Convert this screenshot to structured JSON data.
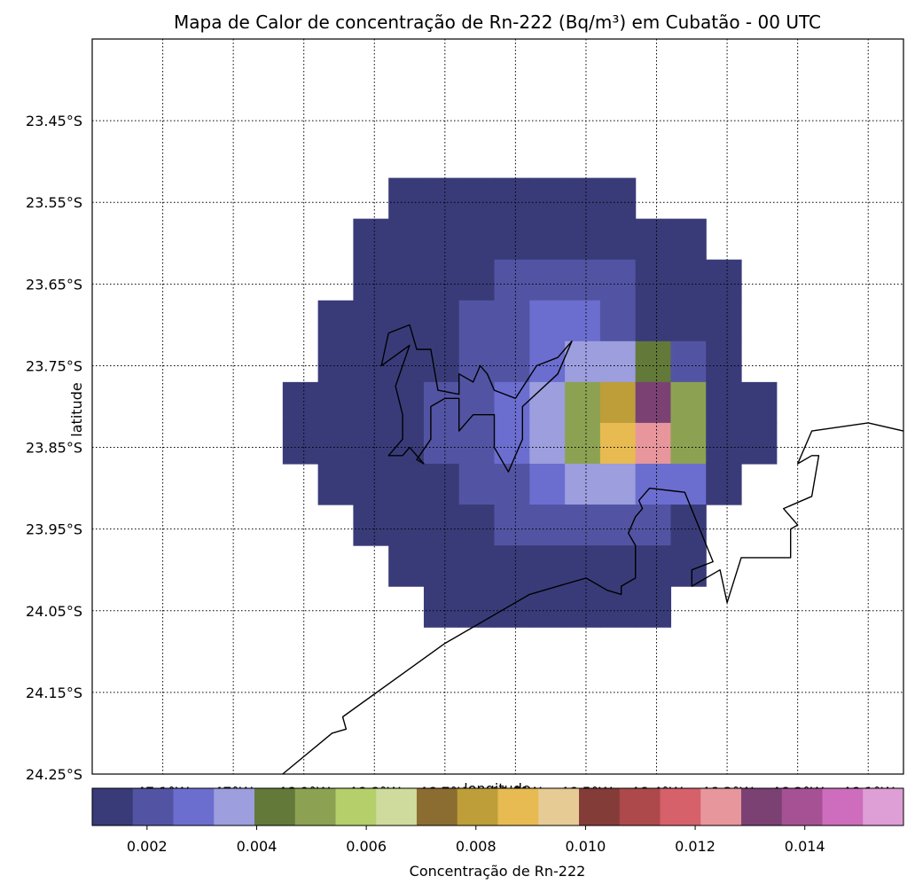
{
  "title": "Mapa de Calor de concentração de Rn-222 (Bq/m³) em Cubatão - 00 UTC",
  "map": {
    "xlabel": "longitude",
    "ylabel": "latitude",
    "lon_range": [
      -47.2,
      -46.05
    ],
    "lat_range": [
      -24.25,
      -23.35
    ],
    "lon_ticks": [
      -47.1,
      -47.0,
      -46.9,
      -46.8,
      -46.7,
      -46.6,
      -46.5,
      -46.4,
      -46.3,
      -46.2,
      -46.1
    ],
    "lon_tick_labels": [
      "47.1°W",
      "47°W",
      "46.9°W",
      "46.8°W",
      "46.7°W",
      "46.6°W",
      "46.5°W",
      "46.4°W",
      "46.3°W",
      "46.2°W",
      "46.1°W"
    ],
    "lat_ticks": [
      -23.45,
      -23.55,
      -23.65,
      -23.75,
      -23.85,
      -23.95,
      -24.05,
      -24.15,
      -24.25
    ],
    "lat_tick_labels": [
      "23.45°S",
      "23.55°S",
      "23.65°S",
      "23.75°S",
      "23.85°S",
      "23.95°S",
      "24.05°S",
      "24.15°S",
      "24.25°S"
    ],
    "gridlines": "dotted",
    "grid_cells": {
      "lon_edges": [
        -46.93,
        -46.88,
        -46.83,
        -46.78,
        -46.73,
        -46.68,
        -46.63,
        -46.58,
        -46.53,
        -46.48,
        -46.43,
        -46.38,
        -46.33,
        -46.28,
        -46.23
      ],
      "lat_edges": [
        -23.52,
        -23.57,
        -23.62,
        -23.67,
        -23.72,
        -23.77,
        -23.82,
        -23.87,
        -23.92,
        -23.97,
        -24.02,
        -24.07
      ],
      "rows": [
        [
          0,
          0,
          0,
          1,
          1,
          1,
          1,
          1,
          1,
          1,
          0,
          0,
          0,
          0
        ],
        [
          0,
          0,
          1,
          1,
          1,
          1,
          1,
          1,
          1,
          1,
          1,
          1,
          0,
          0
        ],
        [
          0,
          0,
          1,
          1,
          1,
          1,
          2,
          2,
          2,
          2,
          1,
          1,
          1,
          0
        ],
        [
          0,
          1,
          1,
          1,
          1,
          2,
          2,
          3,
          3,
          2,
          1,
          1,
          1,
          0
        ],
        [
          0,
          1,
          1,
          1,
          1,
          2,
          2,
          3,
          4,
          4,
          5,
          2,
          1,
          0
        ],
        [
          1,
          1,
          1,
          1,
          2,
          2,
          3,
          4,
          6,
          10,
          17,
          6,
          1,
          1
        ],
        [
          1,
          1,
          1,
          1,
          2,
          2,
          3,
          4,
          6,
          11,
          16,
          6,
          1,
          1
        ],
        [
          0,
          1,
          1,
          1,
          1,
          2,
          2,
          3,
          4,
          4,
          3,
          3,
          1,
          0
        ],
        [
          0,
          0,
          1,
          1,
          1,
          1,
          2,
          2,
          2,
          2,
          2,
          1,
          0,
          0
        ],
        [
          0,
          0,
          0,
          1,
          1,
          1,
          1,
          1,
          1,
          1,
          1,
          1,
          0,
          0
        ],
        [
          0,
          0,
          0,
          0,
          1,
          1,
          1,
          1,
          1,
          1,
          1,
          0,
          0,
          0
        ]
      ]
    },
    "coastlines": [
      [
        [
          -46.78,
          -23.71
        ],
        [
          -46.75,
          -23.7
        ],
        [
          -46.74,
          -23.73
        ],
        [
          -46.72,
          -23.73
        ],
        [
          -46.71,
          -23.78
        ],
        [
          -46.68,
          -23.785
        ],
        [
          -46.68,
          -23.76
        ],
        [
          -46.66,
          -23.77
        ],
        [
          -46.65,
          -23.75
        ],
        [
          -46.64,
          -23.76
        ],
        [
          -46.63,
          -23.78
        ],
        [
          -46.6,
          -23.79
        ],
        [
          -46.57,
          -23.75
        ],
        [
          -46.54,
          -23.74
        ],
        [
          -46.52,
          -23.72
        ],
        [
          -46.54,
          -23.76
        ],
        [
          -46.59,
          -23.8
        ],
        [
          -46.59,
          -23.84
        ],
        [
          -46.61,
          -23.88
        ],
        [
          -46.63,
          -23.85
        ],
        [
          -46.63,
          -23.81
        ],
        [
          -46.66,
          -23.81
        ],
        [
          -46.68,
          -23.83
        ],
        [
          -46.68,
          -23.79
        ],
        [
          -46.7,
          -23.79
        ],
        [
          -46.72,
          -23.8
        ],
        [
          -46.72,
          -23.84
        ],
        [
          -46.74,
          -23.865
        ],
        [
          -46.73,
          -23.87
        ],
        [
          -46.75,
          -23.85
        ],
        [
          -46.76,
          -23.86
        ],
        [
          -46.78,
          -23.86
        ],
        [
          -46.76,
          -23.84
        ],
        [
          -46.76,
          -23.81
        ],
        [
          -46.77,
          -23.775
        ],
        [
          -46.75,
          -23.725
        ],
        [
          -46.79,
          -23.75
        ],
        [
          -46.78,
          -23.71
        ]
      ],
      [
        [
          -46.93,
          -24.25
        ],
        [
          -46.86,
          -24.2
        ],
        [
          -46.84,
          -24.195
        ],
        [
          -46.845,
          -24.18
        ],
        [
          -46.7,
          -24.09
        ],
        [
          -46.58,
          -24.03
        ],
        [
          -46.5,
          -24.01
        ],
        [
          -46.47,
          -24.025
        ],
        [
          -46.45,
          -24.03
        ],
        [
          -46.45,
          -24.02
        ],
        [
          -46.43,
          -24.01
        ],
        [
          -46.43,
          -23.97
        ],
        [
          -46.44,
          -23.955
        ],
        [
          -46.43,
          -23.935
        ],
        [
          -46.42,
          -23.925
        ],
        [
          -46.425,
          -23.915
        ],
        [
          -46.41,
          -23.9
        ],
        [
          -46.36,
          -23.905
        ],
        [
          -46.32,
          -23.99
        ],
        [
          -46.35,
          -24.0
        ],
        [
          -46.35,
          -24.02
        ],
        [
          -46.31,
          -24.0
        ],
        [
          -46.3,
          -24.04
        ],
        [
          -46.28,
          -23.985
        ],
        [
          -46.24,
          -23.985
        ],
        [
          -46.21,
          -23.985
        ],
        [
          -46.21,
          -23.95
        ],
        [
          -46.2,
          -23.945
        ],
        [
          -46.22,
          -23.925
        ],
        [
          -46.18,
          -23.91
        ],
        [
          -46.17,
          -23.86
        ],
        [
          -46.18,
          -23.86
        ],
        [
          -46.2,
          -23.87
        ],
        [
          -46.18,
          -23.83
        ],
        [
          -46.1,
          -23.82
        ],
        [
          -46.05,
          -23.83
        ]
      ]
    ]
  },
  "colorbar": {
    "label": "Concentração de Rn-222",
    "range": [
      0.001,
      0.0158
    ],
    "ticks": [
      0.002,
      0.004,
      0.006,
      0.008,
      0.01,
      0.012,
      0.014
    ],
    "tick_labels": [
      "0.002",
      "0.004",
      "0.006",
      "0.008",
      "0.010",
      "0.012",
      "0.014"
    ],
    "colors": [
      "#393b79",
      "#5254a3",
      "#6b6ecf",
      "#9c9ede",
      "#637939",
      "#8ca252",
      "#b5cf6b",
      "#cedb9c",
      "#8c6d31",
      "#bd9e39",
      "#e7ba52",
      "#e7cb94",
      "#843c39",
      "#ad494a",
      "#d6616b",
      "#e7969c",
      "#7b4173",
      "#a55194",
      "#ce6dbd",
      "#de9ed6"
    ]
  }
}
